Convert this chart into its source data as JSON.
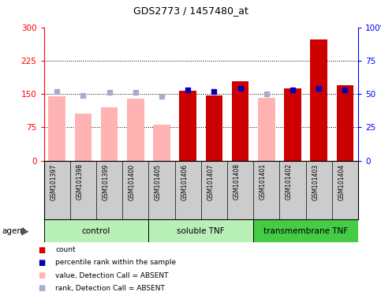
{
  "title": "GDS2773 / 1457480_at",
  "samples": [
    "GSM101397",
    "GSM101398",
    "GSM101399",
    "GSM101400",
    "GSM101405",
    "GSM101406",
    "GSM101407",
    "GSM101408",
    "GSM101401",
    "GSM101402",
    "GSM101403",
    "GSM101404"
  ],
  "group_info": [
    {
      "start": 0,
      "end": 4,
      "label": "control",
      "color": "#b8f0b8"
    },
    {
      "start": 4,
      "end": 8,
      "label": "soluble TNF",
      "color": "#b8f0b8"
    },
    {
      "start": 8,
      "end": 12,
      "label": "transmembrane TNF",
      "color": "#44cc44"
    }
  ],
  "bar_values": [
    144,
    106,
    120,
    140,
    80,
    157,
    147,
    178,
    142,
    162,
    272,
    170
  ],
  "bar_absent": [
    true,
    true,
    true,
    true,
    true,
    false,
    false,
    false,
    true,
    false,
    false,
    false
  ],
  "rank_values": [
    52,
    49,
    51,
    51,
    48,
    53,
    52,
    54,
    50,
    53,
    54,
    53
  ],
  "rank_absent": [
    true,
    true,
    true,
    true,
    true,
    false,
    false,
    false,
    true,
    false,
    false,
    false
  ],
  "ylim_left": [
    0,
    300
  ],
  "ylim_right": [
    0,
    100
  ],
  "yticks_left": [
    0,
    75,
    150,
    225,
    300
  ],
  "yticks_right": [
    0,
    25,
    50,
    75,
    100
  ],
  "bar_color_present": "#cc0000",
  "bar_color_absent": "#ffb3b3",
  "rank_color_present": "#0000bb",
  "rank_color_absent": "#aaaacc",
  "bar_width": 0.65,
  "xlabels_bg": "#cccccc",
  "plot_bg": "#ffffff",
  "legend_items": [
    {
      "symbol": "s",
      "color": "#cc0000",
      "label": "count"
    },
    {
      "symbol": "s",
      "color": "#0000bb",
      "label": "percentile rank within the sample"
    },
    {
      "symbol": "s",
      "color": "#ffb3b3",
      "label": "value, Detection Call = ABSENT"
    },
    {
      "symbol": "s",
      "color": "#aaaacc",
      "label": "rank, Detection Call = ABSENT"
    }
  ]
}
